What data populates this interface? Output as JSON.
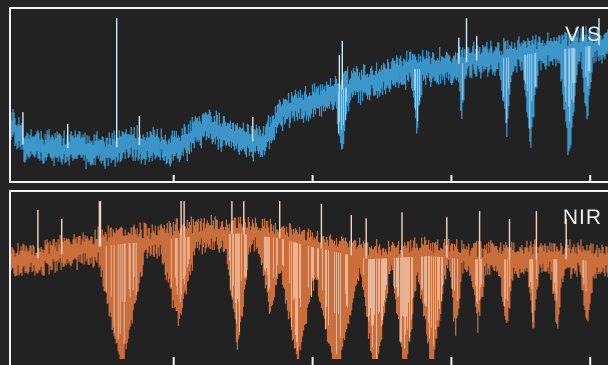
{
  "chart_data": [
    {
      "type": "line",
      "band_label": "VIS",
      "color": "#3ea0d8",
      "highlight": "#cfe9f6",
      "x_ticks": 4,
      "profile": [
        [
          0,
          0.35
        ],
        [
          0.02,
          0.2
        ],
        [
          0.08,
          0.18
        ],
        [
          0.16,
          0.17
        ],
        [
          0.2,
          0.2
        ],
        [
          0.28,
          0.18
        ],
        [
          0.32,
          0.3
        ],
        [
          0.36,
          0.28
        ],
        [
          0.42,
          0.2
        ],
        [
          0.46,
          0.42
        ],
        [
          0.52,
          0.48
        ],
        [
          0.56,
          0.55
        ],
        [
          0.62,
          0.6
        ],
        [
          0.66,
          0.66
        ],
        [
          0.72,
          0.68
        ],
        [
          0.78,
          0.72
        ],
        [
          0.84,
          0.74
        ],
        [
          0.9,
          0.78
        ],
        [
          0.95,
          0.8
        ],
        [
          1,
          0.82
        ]
      ],
      "absorption": [
        [
          0.555,
          0.012,
          0.55
        ],
        [
          0.68,
          0.01,
          0.4
        ],
        [
          0.755,
          0.006,
          0.35
        ],
        [
          0.83,
          0.01,
          0.5
        ],
        [
          0.87,
          0.014,
          0.6
        ],
        [
          0.935,
          0.016,
          0.7
        ],
        [
          0.965,
          0.01,
          0.45
        ]
      ],
      "spikes": [
        [
          0.02,
          0.2
        ],
        [
          0.095,
          0.15
        ],
        [
          0.177,
          0.93
        ],
        [
          0.215,
          0.18
        ],
        [
          0.405,
          0.15
        ],
        [
          0.55,
          0.22
        ],
        [
          0.555,
          0.3
        ],
        [
          0.75,
          0.16
        ],
        [
          0.763,
          0.4
        ],
        [
          0.78,
          0.15
        ],
        [
          0.985,
          0.25
        ]
      ]
    },
    {
      "type": "line",
      "band_label": "NIR",
      "color": "#d7743e",
      "highlight": "#f6d6c2",
      "x_ticks": 4,
      "profile": [
        [
          0,
          0.6
        ],
        [
          0.1,
          0.66
        ],
        [
          0.15,
          0.7
        ],
        [
          0.2,
          0.72
        ],
        [
          0.3,
          0.76
        ],
        [
          0.38,
          0.78
        ],
        [
          0.45,
          0.75
        ],
        [
          0.5,
          0.7
        ],
        [
          0.55,
          0.66
        ],
        [
          0.6,
          0.62
        ],
        [
          0.7,
          0.64
        ],
        [
          0.76,
          0.62
        ],
        [
          0.82,
          0.62
        ],
        [
          0.88,
          0.62
        ],
        [
          0.94,
          0.62
        ],
        [
          1,
          0.6
        ]
      ],
      "absorption": [
        [
          0.185,
          0.04,
          0.9
        ],
        [
          0.28,
          0.03,
          0.55
        ],
        [
          0.38,
          0.02,
          0.75
        ],
        [
          0.435,
          0.02,
          0.5
        ],
        [
          0.48,
          0.035,
          0.85
        ],
        [
          0.545,
          0.04,
          1.0
        ],
        [
          0.61,
          0.025,
          1.0
        ],
        [
          0.66,
          0.022,
          1.0
        ],
        [
          0.705,
          0.025,
          0.9
        ],
        [
          0.745,
          0.01,
          0.6
        ],
        [
          0.782,
          0.012,
          0.5
        ],
        [
          0.83,
          0.012,
          0.55
        ],
        [
          0.875,
          0.01,
          0.55
        ],
        [
          0.915,
          0.01,
          0.55
        ],
        [
          0.965,
          0.012,
          0.5
        ]
      ],
      "spikes": [
        [
          0.045,
          0.3
        ],
        [
          0.085,
          0.22
        ],
        [
          0.148,
          0.35
        ],
        [
          0.15,
          0.3
        ],
        [
          0.285,
          0.3
        ],
        [
          0.29,
          0.25
        ],
        [
          0.37,
          0.32
        ],
        [
          0.39,
          0.25
        ],
        [
          0.45,
          0.3
        ],
        [
          0.52,
          0.28
        ],
        [
          0.57,
          0.25
        ],
        [
          0.595,
          0.25
        ],
        [
          0.655,
          0.28
        ],
        [
          0.73,
          0.25
        ],
        [
          0.785,
          0.3
        ],
        [
          0.835,
          0.25
        ],
        [
          0.88,
          0.3
        ],
        [
          0.93,
          0.25
        ]
      ]
    }
  ]
}
